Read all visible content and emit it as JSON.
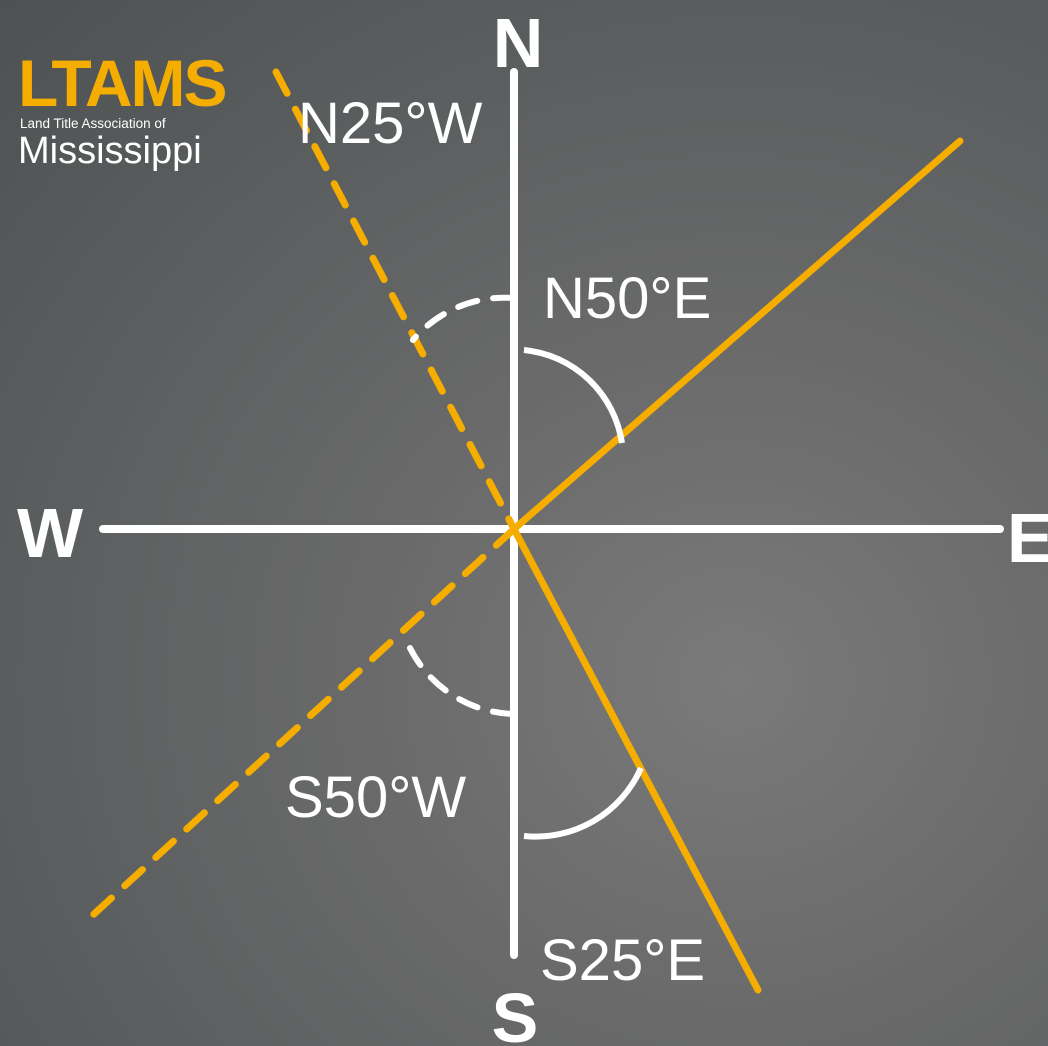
{
  "logo": {
    "name": "LTAMS",
    "subtitle": "Land Title Association of",
    "state": "Mississippi"
  },
  "cardinals": {
    "north": "N",
    "south": "S",
    "east": "E",
    "west": "W"
  },
  "bearings": [
    {
      "label": "N25°W",
      "quadrant": "north-west",
      "line": "dashed"
    },
    {
      "label": "N50°E",
      "quadrant": "north-east",
      "line": "solid"
    },
    {
      "label": "S50°W",
      "quadrant": "south-west",
      "line": "dashed"
    },
    {
      "label": "S25°E",
      "quadrant": "south-east",
      "line": "solid"
    }
  ],
  "colors": {
    "bearing_line": "#f5ad00",
    "axis": "#ffffff",
    "text": "#ffffff",
    "logo_accent": "#f5ad00"
  }
}
